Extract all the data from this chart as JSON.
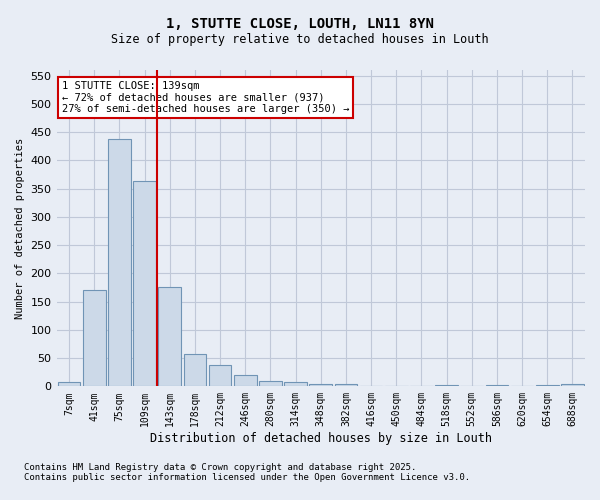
{
  "title1": "1, STUTTE CLOSE, LOUTH, LN11 8YN",
  "title2": "Size of property relative to detached houses in Louth",
  "xlabel": "Distribution of detached houses by size in Louth",
  "ylabel": "Number of detached properties",
  "bins": [
    "7sqm",
    "41sqm",
    "75sqm",
    "109sqm",
    "143sqm",
    "178sqm",
    "212sqm",
    "246sqm",
    "280sqm",
    "314sqm",
    "348sqm",
    "382sqm",
    "416sqm",
    "450sqm",
    "484sqm",
    "518sqm",
    "552sqm",
    "586sqm",
    "620sqm",
    "654sqm",
    "688sqm"
  ],
  "values": [
    7,
    170,
    437,
    363,
    175,
    57,
    38,
    20,
    10,
    7,
    5,
    5,
    0,
    0,
    0,
    3,
    0,
    3,
    0,
    3,
    5
  ],
  "bar_color": "#ccd9e8",
  "bar_edge_color": "#7094b5",
  "property_line_color": "#cc0000",
  "property_line_x": 3.5,
  "annotation_text": "1 STUTTE CLOSE: 139sqm\n← 72% of detached houses are smaller (937)\n27% of semi-detached houses are larger (350) →",
  "annotation_box_color": "white",
  "annotation_box_edge_color": "#cc0000",
  "ylim": [
    0,
    560
  ],
  "yticks": [
    0,
    50,
    100,
    150,
    200,
    250,
    300,
    350,
    400,
    450,
    500,
    550
  ],
  "grid_color": "#c0c8d8",
  "bg_color": "#e8edf5",
  "footnote1": "Contains HM Land Registry data © Crown copyright and database right 2025.",
  "footnote2": "Contains public sector information licensed under the Open Government Licence v3.0."
}
